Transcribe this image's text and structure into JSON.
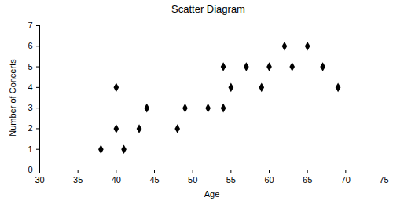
{
  "chart_data": {
    "type": "scatter",
    "title": "Scatter Diagram",
    "x_label": "Age",
    "y_label": "Number of Concerts",
    "x": [
      38,
      40,
      40,
      41,
      43,
      44,
      48,
      49,
      52,
      54,
      54,
      55,
      57,
      59,
      60,
      62,
      63,
      65,
      67,
      69
    ],
    "values": [
      1,
      4,
      2,
      1,
      2,
      3,
      2,
      3,
      3,
      5,
      3,
      4,
      5,
      4,
      5,
      6,
      5,
      6,
      5,
      4
    ],
    "color": "#000000",
    "marker": "diamond",
    "xlim": [
      30,
      75
    ],
    "xticks": [
      30,
      35,
      40,
      45,
      50,
      55,
      60,
      65,
      70,
      75
    ],
    "ylim": [
      0,
      7
    ],
    "yticks": [
      0,
      1,
      2,
      3,
      4,
      5,
      6,
      7
    ],
    "grid": false
  }
}
